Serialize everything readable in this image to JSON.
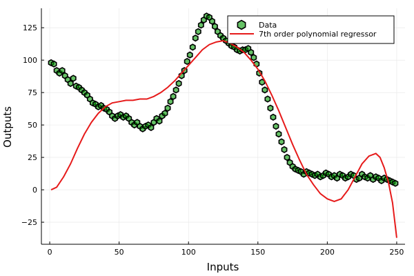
{
  "chart_data": {
    "type": "scatter",
    "title": "",
    "xlabel": "Inputs",
    "ylabel": "Outputs",
    "xlim": [
      -6,
      256
    ],
    "ylim": [
      -42,
      140
    ],
    "xticks": [
      0,
      50,
      100,
      150,
      200,
      250
    ],
    "yticks": [
      -25,
      0,
      25,
      50,
      75,
      100,
      125
    ],
    "grid": true,
    "legend": "top-right",
    "series": [
      {
        "name": "Data",
        "kind": "scatter",
        "marker": "hexagon",
        "color": "#009a00",
        "points": [
          [
            1,
            98
          ],
          [
            3,
            97
          ],
          [
            5,
            92
          ],
          [
            7,
            90
          ],
          [
            9,
            92
          ],
          [
            11,
            88
          ],
          [
            13,
            85
          ],
          [
            15,
            82
          ],
          [
            17,
            86
          ],
          [
            19,
            80
          ],
          [
            21,
            79
          ],
          [
            23,
            77
          ],
          [
            25,
            75
          ],
          [
            27,
            73
          ],
          [
            29,
            70
          ],
          [
            31,
            67
          ],
          [
            33,
            66
          ],
          [
            35,
            64
          ],
          [
            37,
            65
          ],
          [
            39,
            63
          ],
          [
            41,
            62
          ],
          [
            43,
            60
          ],
          [
            45,
            57
          ],
          [
            47,
            55
          ],
          [
            49,
            57
          ],
          [
            51,
            58
          ],
          [
            53,
            56
          ],
          [
            55,
            57
          ],
          [
            57,
            55
          ],
          [
            59,
            52
          ],
          [
            61,
            50
          ],
          [
            63,
            52
          ],
          [
            65,
            49
          ],
          [
            67,
            47
          ],
          [
            69,
            49
          ],
          [
            71,
            50
          ],
          [
            73,
            48
          ],
          [
            75,
            52
          ],
          [
            77,
            55
          ],
          [
            79,
            53
          ],
          [
            81,
            57
          ],
          [
            83,
            59
          ],
          [
            85,
            63
          ],
          [
            87,
            68
          ],
          [
            89,
            72
          ],
          [
            91,
            77
          ],
          [
            93,
            82
          ],
          [
            95,
            88
          ],
          [
            97,
            92
          ],
          [
            99,
            99
          ],
          [
            101,
            104
          ],
          [
            103,
            110
          ],
          [
            105,
            117
          ],
          [
            107,
            122
          ],
          [
            109,
            127
          ],
          [
            111,
            131
          ],
          [
            113,
            134
          ],
          [
            115,
            133
          ],
          [
            117,
            130
          ],
          [
            119,
            126
          ],
          [
            121,
            122
          ],
          [
            123,
            119
          ],
          [
            125,
            117
          ],
          [
            127,
            115
          ],
          [
            129,
            113
          ],
          [
            131,
            111
          ],
          [
            133,
            110
          ],
          [
            135,
            108
          ],
          [
            137,
            107
          ],
          [
            139,
            108
          ],
          [
            141,
            108
          ],
          [
            143,
            109
          ],
          [
            145,
            106
          ],
          [
            147,
            102
          ],
          [
            149,
            97
          ],
          [
            151,
            90
          ],
          [
            153,
            83
          ],
          [
            155,
            77
          ],
          [
            157,
            70
          ],
          [
            159,
            63
          ],
          [
            161,
            56
          ],
          [
            163,
            49
          ],
          [
            165,
            43
          ],
          [
            167,
            37
          ],
          [
            169,
            31
          ],
          [
            171,
            25
          ],
          [
            173,
            21
          ],
          [
            175,
            18
          ],
          [
            177,
            16
          ],
          [
            179,
            15
          ],
          [
            181,
            14
          ],
          [
            183,
            12
          ],
          [
            185,
            14
          ],
          [
            187,
            13
          ],
          [
            189,
            12
          ],
          [
            191,
            11
          ],
          [
            193,
            12
          ],
          [
            195,
            10
          ],
          [
            197,
            11
          ],
          [
            199,
            13
          ],
          [
            201,
            12
          ],
          [
            203,
            10
          ],
          [
            205,
            11
          ],
          [
            207,
            9
          ],
          [
            209,
            12
          ],
          [
            211,
            11
          ],
          [
            213,
            9
          ],
          [
            215,
            10
          ],
          [
            217,
            12
          ],
          [
            219,
            11
          ],
          [
            221,
            8
          ],
          [
            223,
            9
          ],
          [
            225,
            12
          ],
          [
            227,
            10
          ],
          [
            229,
            9
          ],
          [
            231,
            11
          ],
          [
            233,
            8
          ],
          [
            235,
            10
          ],
          [
            237,
            9
          ],
          [
            239,
            7
          ],
          [
            241,
            9
          ],
          [
            243,
            8
          ],
          [
            245,
            7
          ],
          [
            247,
            6
          ],
          [
            249,
            5
          ]
        ]
      },
      {
        "name": "7th order polynomial regressor",
        "kind": "line",
        "color": "#e61a1a",
        "points": [
          [
            1,
            0
          ],
          [
            5,
            2
          ],
          [
            10,
            10
          ],
          [
            15,
            20
          ],
          [
            20,
            32
          ],
          [
            25,
            43
          ],
          [
            30,
            52
          ],
          [
            35,
            59
          ],
          [
            40,
            64
          ],
          [
            45,
            67
          ],
          [
            50,
            68
          ],
          [
            55,
            69
          ],
          [
            60,
            69
          ],
          [
            65,
            70
          ],
          [
            70,
            70
          ],
          [
            75,
            72
          ],
          [
            80,
            75
          ],
          [
            85,
            79
          ],
          [
            90,
            84
          ],
          [
            95,
            90
          ],
          [
            100,
            96
          ],
          [
            105,
            102
          ],
          [
            110,
            108
          ],
          [
            115,
            112
          ],
          [
            120,
            114
          ],
          [
            125,
            115
          ],
          [
            130,
            113
          ],
          [
            135,
            110
          ],
          [
            140,
            106
          ],
          [
            145,
            100
          ],
          [
            150,
            93
          ],
          [
            155,
            84
          ],
          [
            160,
            73
          ],
          [
            165,
            61
          ],
          [
            170,
            48
          ],
          [
            175,
            35
          ],
          [
            180,
            23
          ],
          [
            185,
            12
          ],
          [
            190,
            4
          ],
          [
            195,
            -3
          ],
          [
            200,
            -7
          ],
          [
            205,
            -9
          ],
          [
            210,
            -7
          ],
          [
            215,
            0
          ],
          [
            220,
            10
          ],
          [
            225,
            20
          ],
          [
            230,
            26
          ],
          [
            235,
            28
          ],
          [
            238,
            25
          ],
          [
            241,
            17
          ],
          [
            244,
            6
          ],
          [
            247,
            -10
          ],
          [
            250,
            -37
          ]
        ]
      }
    ]
  }
}
